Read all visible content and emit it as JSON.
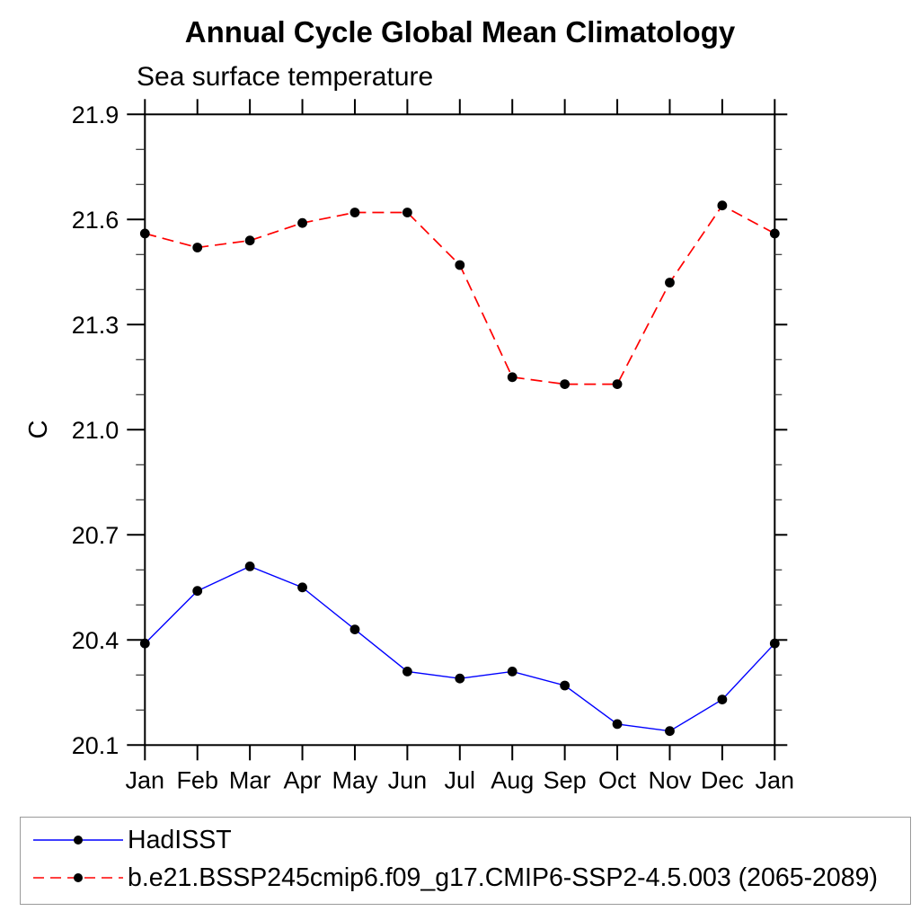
{
  "chart_data": {
    "type": "line",
    "title": "Annual Cycle Global Mean Climatology",
    "subtitle": "Sea surface temperature",
    "ylabel": "C",
    "xlabel": "",
    "categories": [
      "Jan",
      "Feb",
      "Mar",
      "Apr",
      "May",
      "Jun",
      "Jul",
      "Aug",
      "Sep",
      "Oct",
      "Nov",
      "Dec",
      "Jan"
    ],
    "y_axis": {
      "min": 20.1,
      "max": 21.9,
      "major_step": 0.3,
      "minor_step": 0.1,
      "major_tick_labels": [
        "20.1",
        "20.4",
        "20.7",
        "21.0",
        "21.3",
        "21.6",
        "21.9"
      ]
    },
    "grid": false,
    "legend_position": "bottom-left-box",
    "marker_color": "#000000",
    "series": [
      {
        "name": "HadISST",
        "color": "#0000ff",
        "line_style": "solid",
        "marker": "filled-circle",
        "values": [
          20.39,
          20.54,
          20.61,
          20.55,
          20.43,
          20.31,
          20.29,
          20.31,
          20.27,
          20.16,
          20.14,
          20.23,
          20.39
        ]
      },
      {
        "name": "b.e21.BSSP245cmip6.f09_g17.CMIP6-SSP2-4.5.003 (2065-2089)",
        "color": "#ff0000",
        "line_style": "dashed",
        "marker": "filled-circle",
        "values": [
          21.56,
          21.52,
          21.54,
          21.59,
          21.62,
          21.62,
          21.47,
          21.15,
          21.13,
          21.13,
          21.42,
          21.64,
          21.56
        ]
      }
    ]
  }
}
